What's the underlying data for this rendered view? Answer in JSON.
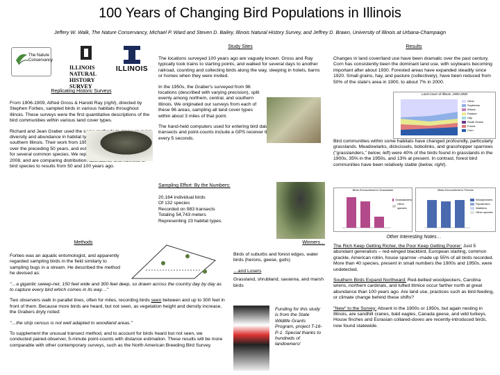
{
  "poster": {
    "title": "100 Years of Changing Bird Populations in Illinois",
    "authors": "Jeffery W. Walk, The Nature Conservancy, Michael P. Ward and Steven D. Bailey, Illinois Natural History Survey, and Jeffrey D. Brawn, University of Illinois at Urbana-Champaign"
  },
  "logos": {
    "nature_conservancy": "The Nature Conservancy",
    "nhs_lines": [
      "ILLINOIS",
      "NATURAL",
      "HISTORY",
      "SURVEY"
    ],
    "illinois": "ILLINOIS"
  },
  "replicating": {
    "heading": "Replicating Historic Surveys",
    "p1_a": "From 1906-1909, Alfred Gross & Harold Ray (",
    "p1_right": "right",
    "p1_b": "), directed by Stephen Forbes, sampled birds in various habitats throughout Illinois. These surveys were the first quantitative descriptions of the bird communities within various land cover types.",
    "p2": "Richard and Jean Graber used the same methods to measure avian diversity and abundance in habitat types in northern, central and southern Illinois. Their work from 1956-1958 examined changes over the preceding 50 years, and estimated statewide populations for several common species. We repeated these surveys from 2006-2008, and are comparing distribution, abundance and richness of bird species to results from 50 and 100 years ago."
  },
  "methods": {
    "heading": "Methods",
    "p1": "Forbes was an aquatic entomologist, and apparently regarded sampling birds in the field similarly to sampling bugs in a stream. He described the method he devised as:",
    "q1": "\"…a gigantic sweep-net, 150 feet wide and 300 feet deep, so drawn across the country day by day as to capture every bird which comes in its way…\"",
    "p2_a": "Two observers walk in parallel lines, often for miles, recording birds ",
    "p2_ul": "seen",
    "p2_b": " between and up to 300 feet in front of them. Because more birds are heard, but not seen, as vegetation height and density increase, the Grabers dryly noted:",
    "q2": "\"…the strip census is not well adapted to woodland areas.\"",
    "p3": "To supplement the unusual transect method, and to account for birds heard but not seen, we conducted paired-observer, 5-minute point-counts with distance estimation. These results will be more comparable with other contemporary surveys, such as the North American Breeding Bird Survey."
  },
  "study_sites": {
    "heading": "Study Sites",
    "p1": "The locations surveyed 100 years ago are vaguely known. Gross and Ray typically took trains to starting points, and walked for several days to another railroad, counting and collecting birds along the way, sleeping in hotels, barns or homes when they were invited.",
    "p2": "In the 1950s, the Graber's surveyed from 96 locations (described with varying precision), split evenly among northern, central, and southern Illinois. We originated our surveys from each of these 96 areas, sampling all land cover types within about 3 miles of that point.",
    "p3": "The hand-held computers used for entering bird data in 'real time' during transects and point-counts include a GPS receiver that logged our location every 5 seconds."
  },
  "sampling": {
    "heading": "Sampling Effort: By the Numbers:",
    "lines": [
      "20,164 individual birds",
      "Of 132 species",
      "Recorded on 983 transects",
      "Totaling 54,743 meters",
      "Representing 23 habitat types."
    ]
  },
  "winners": {
    "heading": "Winners…",
    "p1": "Birds of suburbs and forest edges, water birds (herons, geese, gulls)",
    "losers_heading": "…and Losers",
    "p2": "Grassland, shrubland, savanna, and marsh birds"
  },
  "funding": {
    "text": "Funding for this study is from the State Wildlife Grants Program, project T-16-P-1. Special thanks to hundreds of landowners!"
  },
  "results": {
    "heading": "Results",
    "p1": "Changes in land cover/land use have been dramatic over the past century. Corn has consistently been the dominant land use, with soybeans becoming important after about 1930. Forested areas have expanded steadily since 1920. Small grains, hay, and pasture (collectively), have been reduced from 50% of the state's area in 1900, to about 7% in 2000.",
    "p2_a": "Bird communities within some habitats have changed profoundly, particularly grasslands. Meadowlarks, dickcissels, bobolinks, and grasshopper sparrows (\"grasslanders,\" ",
    "p2_below_left": "below, left",
    "p2_b": ") were 40% of the birds found in grasslands in the 1900s, 35% in the 1950s, and 13% at present. In contrast, forest bird communities have been relatively stable (",
    "p2_below_right": "below, right",
    "p2_c": ")."
  },
  "land_chart": {
    "title": "Land Cover of Illinois, 1900-2000",
    "ylabel": "Proportion of Area",
    "legend": [
      "Other",
      "Soybeans",
      "Wheat",
      "Pasture",
      "Hay",
      "Small Grains",
      "Forest",
      "Corn"
    ],
    "colors": [
      "#d8d8ff",
      "#8fb0e6",
      "#c080c0",
      "#e8e890",
      "#a0d8e0",
      "#6a3a8a",
      "#e07a7a",
      "#2a5aa8"
    ]
  },
  "grass_chart": {
    "title": "Birds Encountered in Grasslands",
    "legend": [
      "Grasslanders",
      "Other species"
    ]
  },
  "forest_chart": {
    "title": "Birds Encountered in Forests",
    "legend": [
      "Woodpeckers",
      "Flycatchers",
      "Warblers",
      "Other species"
    ]
  },
  "other_notes": {
    "heading": "Other Interesting Notes…",
    "n1_head": "The Rich Keep Getting Richer, the Poor Keep Getting Poorer:",
    "n1_body": " Just 5 abundant generalists – red-winged blackbird, European starling, common grackle, American robin, house sparrow –made up 55% of all birds recorded. More than 40 species, present in small numbers the 1900s and 1950s, were undetected.",
    "n2_head": "Southern Birds Expand Northward:",
    "n2_body": " Red-bellied woodpeckers, Carolina wrens, northern cardinals, and tufted titmice occur farther north at great abundance than 100 years ago. Are land use, practices such as bird-feeding, or climate change behind these shifts?",
    "n3_head": "\"New\" to the Survey:",
    "n3_body": " Absent in the 1900s or 1950s, but again nesting in Illinois, are sandhill cranes, bald eagles, Canada geese, and wild turkeys. House finches and Eurasian collared-doves are recently-introduced birds, now found statewide."
  }
}
